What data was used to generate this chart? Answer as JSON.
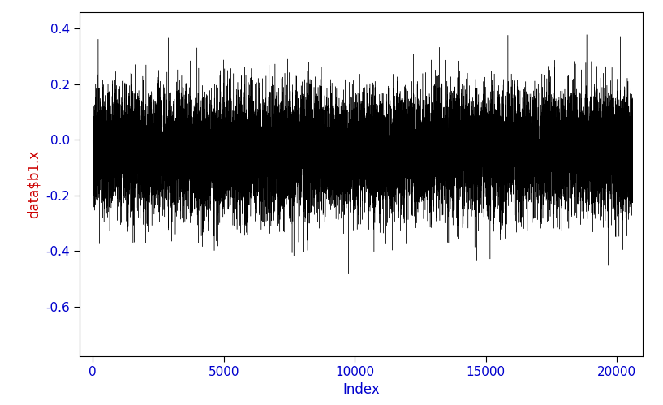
{
  "title": "",
  "xlabel": "Index",
  "ylabel": "data$b1.x",
  "xlabel_color": "#0000CD",
  "ylabel_color": "#CC0000",
  "tick_color": "#0000CD",
  "line_color": "#000000",
  "background_color": "#ffffff",
  "xlim": [
    -500,
    21000
  ],
  "ylim": [
    -0.78,
    0.46
  ],
  "yticks": [
    0.4,
    0.2,
    0.0,
    -0.2,
    -0.4,
    -0.6
  ],
  "xticks": [
    0,
    5000,
    10000,
    15000,
    20000
  ],
  "n_points": 20601,
  "seed": 42,
  "noise_std": 0.1,
  "figsize": [
    8.17,
    4.99
  ],
  "dpi": 100
}
